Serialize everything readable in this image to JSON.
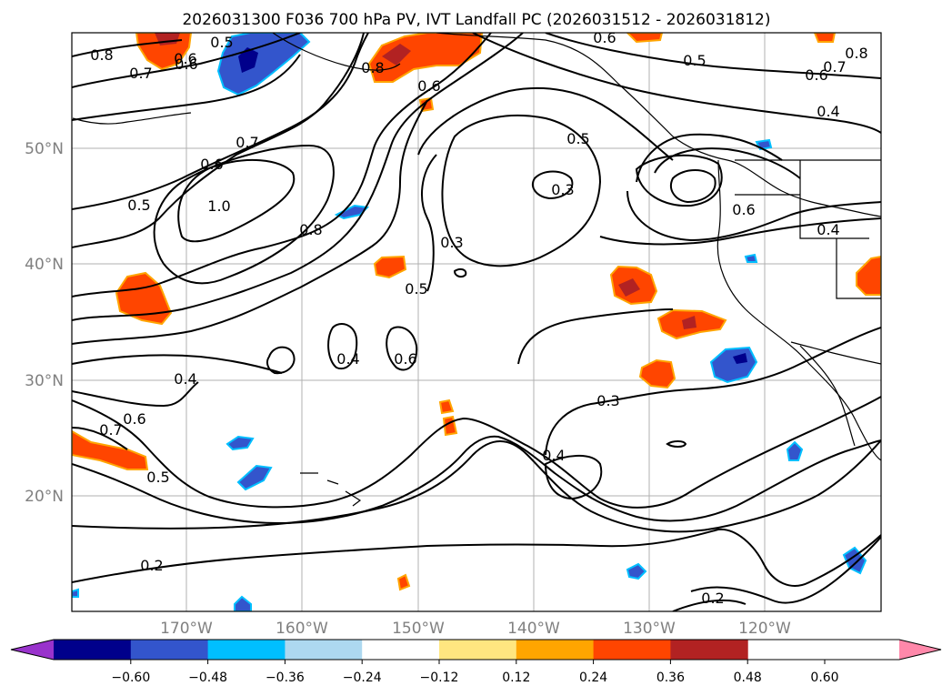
{
  "title": "2026031300 F036 700 hPa PV, IVT Landfall PC (2026031512 - 2026031812)",
  "map": {
    "lat_labels": [
      "50°N",
      "40°N",
      "30°N",
      "20°N"
    ],
    "lon_labels": [
      "170°W",
      "160°W",
      "150°W",
      "140°W",
      "130°W",
      "120°W"
    ],
    "contour_labels": [
      "0.8",
      "0.7",
      "0.6",
      "0.5",
      "0.8",
      "0.6",
      "0.6",
      "0.5",
      "0.7",
      "0.6",
      "0.4",
      "0.8",
      "0.6",
      "0.7",
      "0.6",
      "0.5",
      "1.0",
      "0.8",
      "0.5",
      "0.3",
      "0.3",
      "0.6",
      "0.4",
      "0.5",
      "0.4",
      "0.6",
      "0.4",
      "0.6",
      "0.7",
      "0.5",
      "0.3",
      "0.4",
      "0.2",
      "0.2"
    ],
    "contour_color": "#000000",
    "grid_color": "#b0b0b0"
  },
  "colorbar": {
    "ticks": [
      "−0.60",
      "−0.48",
      "−0.36",
      "−0.24",
      "−0.12",
      "0.12",
      "0.24",
      "0.36",
      "0.48",
      "0.60"
    ],
    "colors": [
      "#9933cc",
      "#00008b",
      "#3355cc",
      "#00bfff",
      "#add8f0",
      "#ffffff",
      "#ffe680",
      "#ffa500",
      "#ff4500",
      "#b22222",
      "#ff88aa"
    ]
  }
}
